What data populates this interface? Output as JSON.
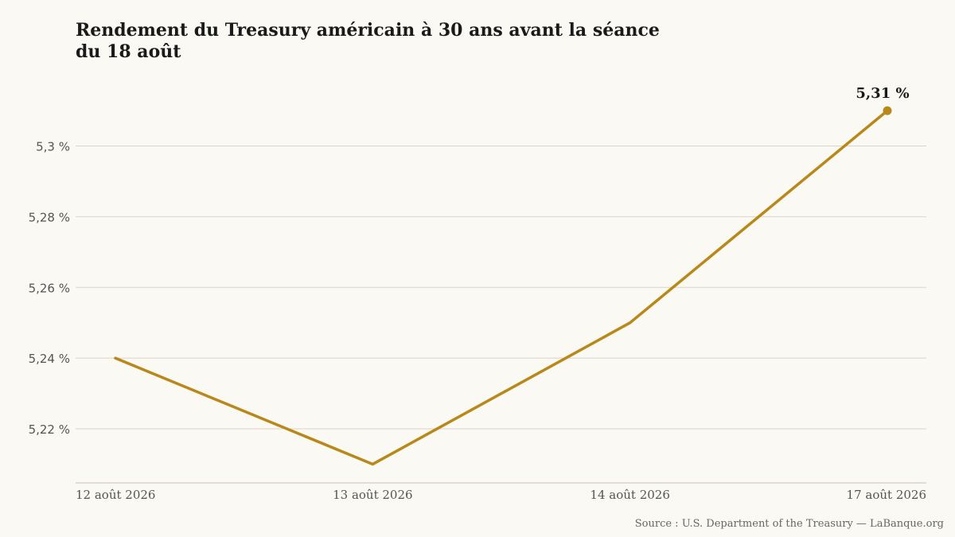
{
  "chart_data": {
    "type": "line",
    "title_lines": [
      "Rendement du Treasury américain à 30 ans avant la séance",
      "du 18 août"
    ],
    "categories": [
      "12 août 2026",
      "13 août 2026",
      "14 août 2026",
      "17 août 2026"
    ],
    "values": [
      5.24,
      5.21,
      5.25,
      5.31
    ],
    "y_ticks": [
      "5,22 %",
      "5,24 %",
      "5,26 %",
      "5,28 %",
      "5,3 %"
    ],
    "y_tick_values": [
      5.22,
      5.24,
      5.26,
      5.28,
      5.3
    ],
    "ylim": [
      5.2047,
      5.3197
    ],
    "grid": true,
    "end_label": "5,31 %",
    "line_color": "#b8891a",
    "grid_color": "#ddd3c6"
  },
  "source": "Source : U.S. Department of the Treasury — LaBanque.org"
}
